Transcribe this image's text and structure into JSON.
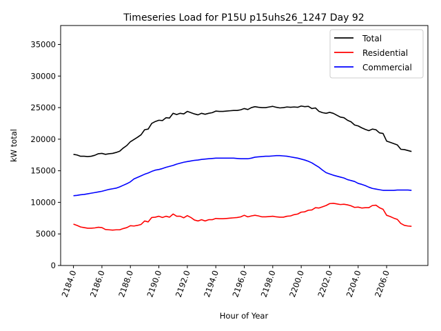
{
  "chart_data": {
    "type": "line",
    "title": "Timeseries Load for P15U p15uhs26_1247  Day 92",
    "xlabel": "Hour of Year",
    "ylabel": "kW total",
    "xlim": [
      2183.1,
      2208.9
    ],
    "ylim": [
      0,
      38000
    ],
    "x_ticks": [
      2184,
      2186,
      2188,
      2190,
      2192,
      2194,
      2196,
      2198,
      2200,
      2202,
      2204,
      2206
    ],
    "x_tick_labels": [
      "2184.0",
      "2186.0",
      "2188.0",
      "2190.0",
      "2192.0",
      "2194.0",
      "2196.0",
      "2198.0",
      "2200.0",
      "2202.0",
      "2204.0",
      "2206.0"
    ],
    "y_ticks": [
      0,
      5000,
      10000,
      15000,
      20000,
      25000,
      30000,
      35000
    ],
    "y_tick_labels": [
      "0",
      "5000",
      "10000",
      "15000",
      "20000",
      "25000",
      "30000",
      "35000"
    ],
    "legend_position": "top-right",
    "x_start": 2184.0,
    "x_step": 0.25,
    "series": [
      {
        "name": "Total",
        "color": "#000000",
        "values": [
          17600,
          17500,
          17300,
          17300,
          17250,
          17300,
          17450,
          17700,
          17750,
          17600,
          17700,
          17750,
          17900,
          18100,
          18600,
          19000,
          19600,
          19950,
          20300,
          20700,
          21500,
          21600,
          22500,
          22800,
          23000,
          22950,
          23400,
          23350,
          24100,
          23900,
          24100,
          24000,
          24400,
          24200,
          24000,
          23850,
          24100,
          23950,
          24100,
          24200,
          24450,
          24400,
          24400,
          24450,
          24500,
          24550,
          24550,
          24650,
          24850,
          24700,
          25000,
          25150,
          25050,
          25000,
          25000,
          25100,
          25200,
          25050,
          24950,
          25000,
          25100,
          25050,
          25100,
          25050,
          25250,
          25150,
          25200,
          24850,
          24950,
          24400,
          24200,
          24100,
          24250,
          24100,
          23800,
          23500,
          23400,
          23000,
          22750,
          22250,
          22100,
          21800,
          21550,
          21350,
          21600,
          21500,
          21000,
          20900,
          19700,
          19500,
          19300,
          19100,
          18400,
          18350,
          18200,
          18050
        ]
      },
      {
        "name": "Residential",
        "color": "#ff0000",
        "values": [
          6550,
          6350,
          6100,
          6000,
          5900,
          5900,
          5950,
          6050,
          6000,
          5700,
          5650,
          5600,
          5650,
          5650,
          5850,
          6000,
          6300,
          6250,
          6350,
          6500,
          7050,
          6900,
          7600,
          7650,
          7800,
          7600,
          7800,
          7650,
          8150,
          7800,
          7800,
          7550,
          7900,
          7600,
          7200,
          7050,
          7250,
          7050,
          7250,
          7250,
          7450,
          7400,
          7400,
          7450,
          7500,
          7550,
          7600,
          7700,
          7950,
          7700,
          7850,
          7950,
          7850,
          7700,
          7700,
          7750,
          7800,
          7700,
          7650,
          7650,
          7800,
          7850,
          8050,
          8150,
          8450,
          8500,
          8750,
          8800,
          9150,
          9100,
          9300,
          9500,
          9800,
          9850,
          9750,
          9650,
          9700,
          9600,
          9450,
          9200,
          9250,
          9100,
          9150,
          9150,
          9500,
          9550,
          9150,
          8900,
          7950,
          7750,
          7500,
          7300,
          6650,
          6350,
          6250,
          6200
        ]
      },
      {
        "name": "Commercial",
        "color": "#0000ff",
        "values": [
          11050,
          11100,
          11200,
          11250,
          11350,
          11450,
          11550,
          11650,
          11750,
          11900,
          12050,
          12150,
          12250,
          12450,
          12700,
          12950,
          13250,
          13700,
          13950,
          14200,
          14450,
          14650,
          14900,
          15100,
          15200,
          15350,
          15550,
          15700,
          15850,
          16050,
          16200,
          16350,
          16450,
          16550,
          16650,
          16700,
          16800,
          16850,
          16900,
          16950,
          17000,
          17000,
          17000,
          17000,
          17000,
          17000,
          16950,
          16900,
          16900,
          16900,
          17000,
          17150,
          17200,
          17250,
          17300,
          17300,
          17350,
          17400,
          17400,
          17350,
          17300,
          17200,
          17100,
          17000,
          16850,
          16700,
          16500,
          16250,
          15900,
          15550,
          15100,
          14700,
          14500,
          14300,
          14150,
          14000,
          13850,
          13600,
          13450,
          13300,
          13000,
          12850,
          12650,
          12400,
          12200,
          12100,
          12000,
          11900,
          11900,
          11900,
          11900,
          11950,
          11950,
          11950,
          11950,
          11900
        ]
      }
    ]
  }
}
